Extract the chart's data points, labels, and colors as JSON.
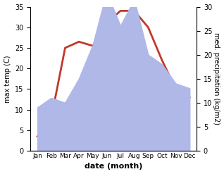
{
  "months": [
    "Jan",
    "Feb",
    "Mar",
    "Apr",
    "May",
    "Jun",
    "Jul",
    "Aug",
    "Sep",
    "Oct",
    "Nov",
    "Dec"
  ],
  "temperature": [
    3.5,
    8.0,
    25.0,
    26.5,
    25.5,
    31.0,
    34.0,
    34.0,
    30.0,
    22.0,
    15.0,
    13.0
  ],
  "precipitation": [
    9.0,
    11.0,
    10.0,
    15.0,
    22.0,
    33.0,
    26.0,
    31.5,
    20.0,
    18.0,
    14.0,
    13.0
  ],
  "temp_color": "#c0392b",
  "precip_color": "#b0b8e8",
  "ylabel_left": "max temp (C)",
  "ylabel_right": "med. precipitation (kg/m2)",
  "xlabel": "date (month)",
  "ylim_left": [
    0,
    35
  ],
  "ylim_right": [
    0,
    30
  ],
  "yticks_left": [
    0,
    5,
    10,
    15,
    20,
    25,
    30,
    35
  ],
  "yticks_right": [
    0,
    5,
    10,
    15,
    20,
    25,
    30
  ],
  "bg_color": "#ffffff",
  "line_width": 2.0
}
